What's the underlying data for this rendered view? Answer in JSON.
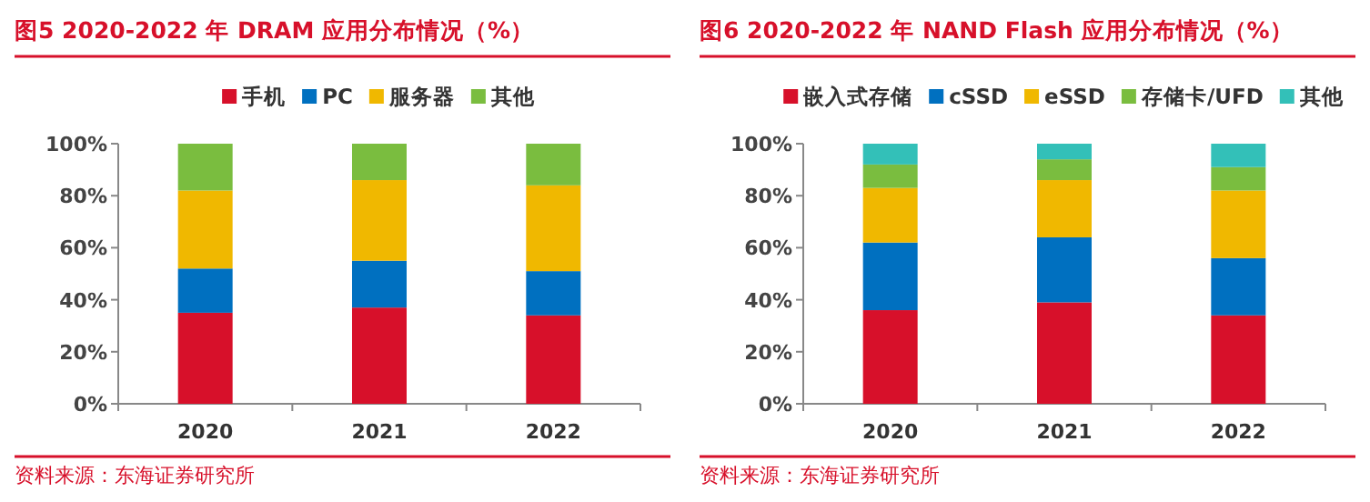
{
  "chart_data": [
    {
      "type": "bar",
      "stacked": true,
      "title": "图5  2020-2022 年 DRAM 应用分布情况（%）",
      "categories": [
        "2020",
        "2021",
        "2022"
      ],
      "series": [
        {
          "name": "手机",
          "color": "#d7102a",
          "values": [
            35,
            37,
            34
          ]
        },
        {
          "name": "PC",
          "color": "#0070c0",
          "values": [
            17,
            18,
            17
          ]
        },
        {
          "name": "服务器",
          "color": "#f0b800",
          "values": [
            30,
            31,
            33
          ]
        },
        {
          "name": "其他",
          "color": "#7abd3f",
          "values": [
            18,
            14,
            16
          ]
        }
      ],
      "ylim": [
        0,
        100
      ],
      "yticks": [
        {
          "value": 0,
          "label": "0%"
        },
        {
          "value": 20,
          "label": "20%"
        },
        {
          "value": 40,
          "label": "40%"
        },
        {
          "value": 60,
          "label": "60%"
        },
        {
          "value": 80,
          "label": "80%"
        },
        {
          "value": 100,
          "label": "100%"
        }
      ],
      "legend": "top",
      "annotations": [
        "资料来源：东海证券研究所"
      ]
    },
    {
      "type": "bar",
      "stacked": true,
      "title": "图6  2020-2022 年 NAND Flash 应用分布情况（%）",
      "categories": [
        "2020",
        "2021",
        "2022"
      ],
      "series": [
        {
          "name": "嵌入式存储",
          "color": "#d7102a",
          "values": [
            36,
            39,
            34
          ]
        },
        {
          "name": "cSSD",
          "color": "#0070c0",
          "values": [
            26,
            25,
            22
          ]
        },
        {
          "name": "eSSD",
          "color": "#f0b800",
          "values": [
            21,
            22,
            26
          ]
        },
        {
          "name": "存储卡/UFD",
          "color": "#7abd3f",
          "values": [
            9,
            8,
            9
          ]
        },
        {
          "name": "其他",
          "color": "#33c0b8",
          "values": [
            8,
            6,
            9
          ]
        }
      ],
      "ylim": [
        0,
        100
      ],
      "yticks": [
        {
          "value": 0,
          "label": "0%"
        },
        {
          "value": 20,
          "label": "20%"
        },
        {
          "value": 40,
          "label": "40%"
        },
        {
          "value": 60,
          "label": "60%"
        },
        {
          "value": 80,
          "label": "80%"
        },
        {
          "value": 100,
          "label": "100%"
        }
      ],
      "legend": "top",
      "annotations": [
        "资料来源：东海证券研究所"
      ]
    }
  ]
}
